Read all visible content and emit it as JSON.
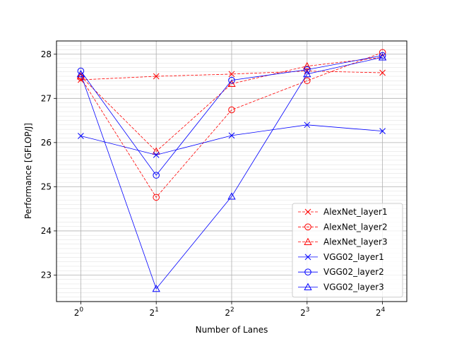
{
  "chart_data": {
    "type": "line",
    "title": "",
    "xlabel": "Number of Lanes",
    "ylabel": "Performance [GFLOP/J]",
    "x_scale": "log2",
    "x": [
      1,
      2,
      4,
      8,
      16
    ],
    "x_tick_labels": [
      {
        "base": "2",
        "exp": "0"
      },
      {
        "base": "2",
        "exp": "1"
      },
      {
        "base": "2",
        "exp": "2"
      },
      {
        "base": "2",
        "exp": "3"
      },
      {
        "base": "2",
        "exp": "4"
      }
    ],
    "ylim": [
      22.4,
      28.3
    ],
    "y_ticks": [
      "23",
      "24",
      "25",
      "26",
      "27",
      "28"
    ],
    "grid": true,
    "minor_grid_y": true,
    "legend_position": "lower-right",
    "series": [
      {
        "name": "AlexNet_layer1",
        "color": "#ff0000",
        "line_style": "dashed",
        "marker": "x",
        "values": [
          27.42,
          27.5,
          27.55,
          27.62,
          27.58
        ]
      },
      {
        "name": "AlexNet_layer2",
        "color": "#ff0000",
        "line_style": "dashed",
        "marker": "circle",
        "values": [
          27.47,
          24.76,
          26.74,
          27.4,
          28.04
        ]
      },
      {
        "name": "AlexNet_layer3",
        "color": "#ff0000",
        "line_style": "dashed",
        "marker": "triangle",
        "values": [
          27.5,
          25.8,
          27.33,
          27.73,
          27.93
        ]
      },
      {
        "name": "VGG02_layer1",
        "color": "#0000ff",
        "line_style": "solid",
        "marker": "x",
        "values": [
          26.15,
          25.72,
          26.16,
          26.4,
          26.26
        ]
      },
      {
        "name": "VGG02_layer2",
        "color": "#0000ff",
        "line_style": "solid",
        "marker": "circle",
        "values": [
          27.62,
          25.26,
          27.41,
          27.65,
          27.97
        ]
      },
      {
        "name": "VGG02_layer3",
        "color": "#0000ff",
        "line_style": "solid",
        "marker": "triangle",
        "values": [
          27.55,
          22.69,
          24.78,
          27.55,
          27.93
        ]
      }
    ]
  }
}
